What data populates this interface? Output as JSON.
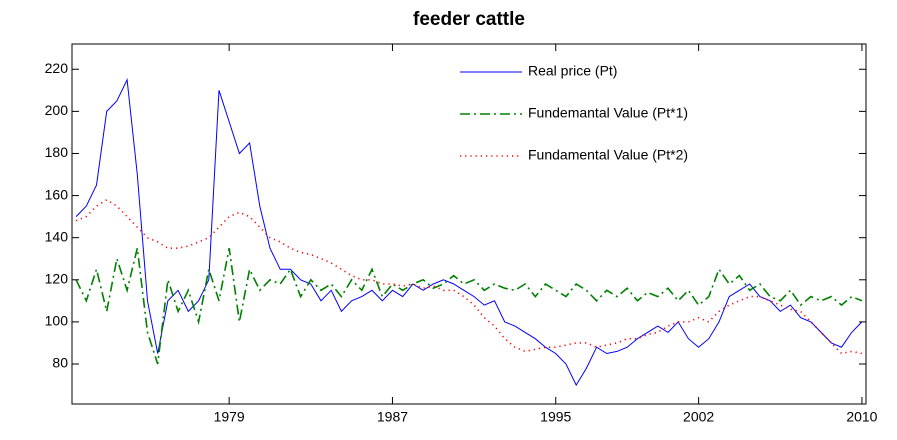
{
  "chart_data": {
    "type": "line",
    "title": "feeder cattle",
    "x": [
      1971.5,
      1972,
      1972.5,
      1973,
      1973.5,
      1974,
      1974.5,
      1975,
      1975.5,
      1976,
      1976.5,
      1977,
      1977.5,
      1978,
      1978.5,
      1979,
      1979.5,
      1980,
      1980.5,
      1981,
      1981.5,
      1982,
      1982.5,
      1983,
      1983.5,
      1984,
      1984.5,
      1985,
      1985.5,
      1986,
      1986.5,
      1987,
      1987.5,
      1988,
      1988.5,
      1989,
      1989.5,
      1990,
      1990.5,
      1991,
      1991.5,
      1992,
      1992.5,
      1993,
      1993.5,
      1994,
      1994.5,
      1995,
      1995.5,
      1996,
      1996.5,
      1997,
      1997.5,
      1998,
      1998.5,
      1999,
      1999.5,
      2000,
      2000.5,
      2001,
      2001.5,
      2002,
      2002.5,
      2003,
      2003.5,
      2004,
      2004.5,
      2005,
      2005.5,
      2006,
      2006.5,
      2007,
      2007.5,
      2008,
      2008.5,
      2009,
      2009.5,
      2010
    ],
    "series": [
      {
        "name": "Real price (Pt)",
        "color": "#0000ff",
        "linestyle": "solid",
        "values": [
          150,
          155,
          165,
          200,
          205,
          215,
          170,
          110,
          85,
          110,
          115,
          105,
          110,
          120,
          210,
          195,
          180,
          185,
          155,
          135,
          125,
          125,
          120,
          118,
          110,
          115,
          105,
          110,
          112,
          115,
          110,
          115,
          112,
          118,
          115,
          118,
          120,
          118,
          115,
          112,
          108,
          110,
          100,
          98,
          95,
          92,
          88,
          85,
          80,
          70,
          78,
          88,
          85,
          86,
          88,
          92,
          95,
          98,
          95,
          100,
          92,
          88,
          92,
          100,
          112,
          115,
          118,
          112,
          110,
          105,
          108,
          102,
          100,
          95,
          90,
          88,
          95,
          100
        ]
      },
      {
        "name": "Fundemantal Value (Pt*1)",
        "color": "#008000",
        "linestyle": "dashdot",
        "values": [
          120,
          110,
          125,
          105,
          130,
          115,
          135,
          95,
          80,
          120,
          105,
          115,
          100,
          125,
          110,
          135,
          100,
          125,
          115,
          120,
          118,
          125,
          112,
          120,
          115,
          118,
          112,
          120,
          115,
          125,
          112,
          118,
          115,
          118,
          120,
          116,
          118,
          122,
          118,
          120,
          115,
          118,
          116,
          115,
          118,
          112,
          118,
          115,
          112,
          118,
          115,
          110,
          115,
          112,
          116,
          110,
          114,
          112,
          116,
          110,
          115,
          108,
          112,
          125,
          118,
          122,
          115,
          118,
          112,
          110,
          115,
          108,
          112,
          110,
          112,
          108,
          112,
          110
        ]
      },
      {
        "name": "Fundamental Value (Pt*2)",
        "color": "#ff0000",
        "linestyle": "dotted",
        "values": [
          148,
          150,
          155,
          158,
          155,
          150,
          145,
          140,
          138,
          135,
          135,
          136,
          138,
          140,
          145,
          150,
          152,
          150,
          145,
          140,
          138,
          135,
          133,
          132,
          130,
          128,
          125,
          122,
          120,
          120,
          118,
          118,
          117,
          118,
          116,
          117,
          115,
          115,
          112,
          108,
          102,
          98,
          92,
          88,
          86,
          87,
          88,
          88,
          89,
          90,
          90,
          88,
          89,
          90,
          92,
          92,
          94,
          95,
          98,
          100,
          100,
          102,
          100,
          105,
          108,
          110,
          112,
          112,
          110,
          108,
          106,
          105,
          100,
          95,
          90,
          85,
          86,
          85
        ]
      }
    ],
    "xlim": [
      1971.3,
      2010.2
    ],
    "xticks": [
      1979,
      1987,
      1995,
      2002,
      2010
    ],
    "ylim": [
      61,
      232
    ],
    "yticks": [
      80,
      100,
      120,
      140,
      160,
      180,
      200,
      220
    ],
    "legend": "northeast",
    "grid": false
  }
}
